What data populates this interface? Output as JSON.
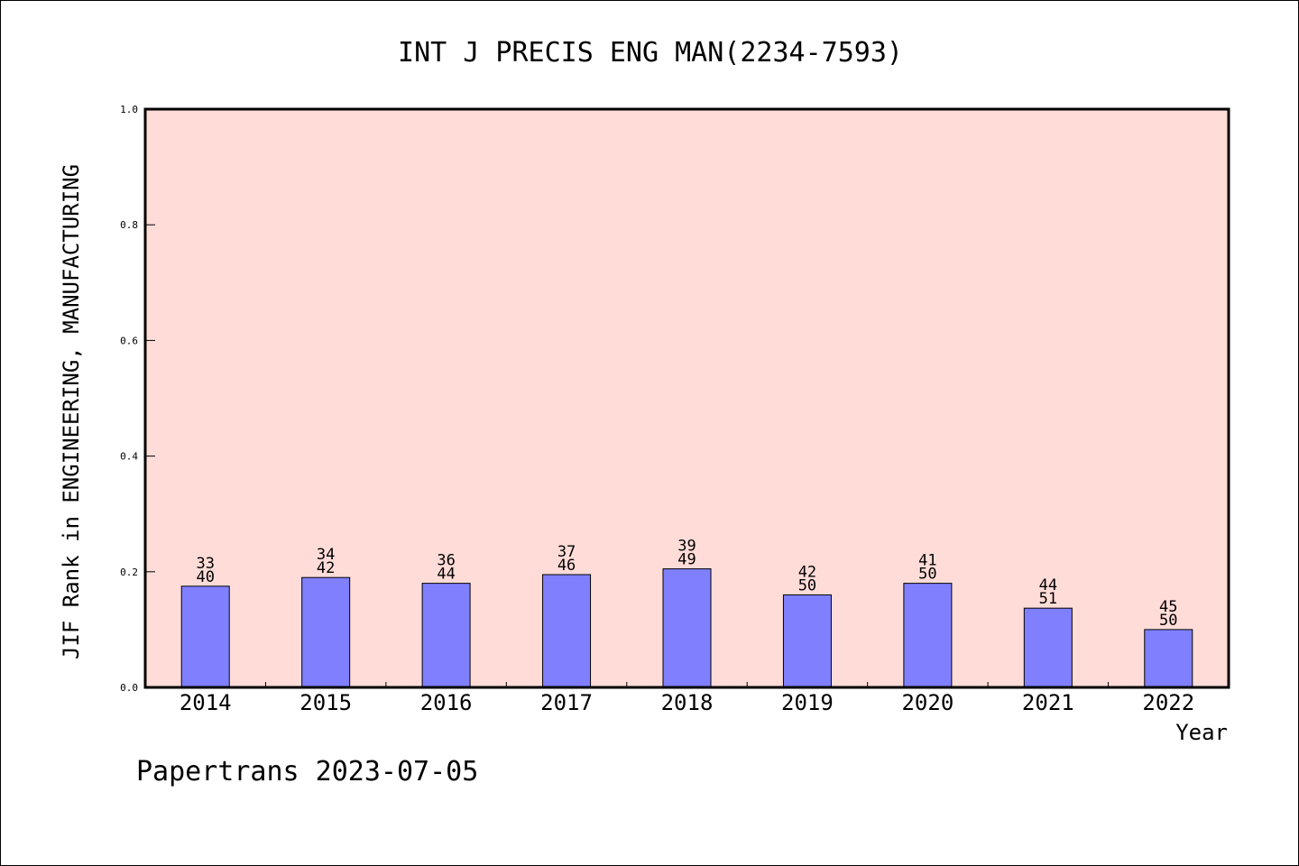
{
  "chart_data": {
    "type": "bar",
    "title": "INT J PRECIS ENG MAN(2234-7593)",
    "xlabel": "Year",
    "ylabel": "JIF Rank in ENGINEERING, MANUFACTURING",
    "categories": [
      "2014",
      "2015",
      "2016",
      "2017",
      "2018",
      "2019",
      "2020",
      "2021",
      "2022"
    ],
    "values": [
      0.175,
      0.19,
      0.18,
      0.195,
      0.205,
      0.16,
      0.18,
      0.137,
      0.1
    ],
    "bar_labels_rank": [
      "33",
      "34",
      "36",
      "37",
      "39",
      "42",
      "41",
      "44",
      "45"
    ],
    "bar_labels_total": [
      "40",
      "42",
      "44",
      "46",
      "49",
      "50",
      "50",
      "51",
      "50"
    ],
    "ylim": [
      0,
      1.0
    ],
    "yticks": [
      "0.0",
      "0.2",
      "0.4",
      "0.6",
      "0.8",
      "1.0"
    ],
    "grid": false,
    "colors": {
      "plot_background": "#FFDCD8",
      "bar_fill": "#8080FF",
      "bar_stroke": "#000000"
    }
  },
  "footer": {
    "text": "Papertrans 2023-07-05"
  }
}
